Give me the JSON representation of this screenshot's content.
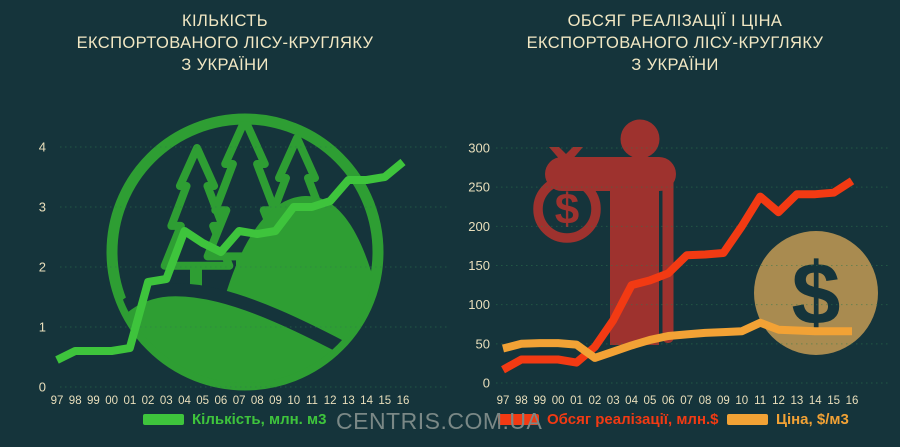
{
  "watermark": "CENTRIS.COM.UA",
  "colors": {
    "background": "#15343B",
    "title_text": "#F2E8C4",
    "axis_text": "#E9DFBC",
    "gridline": "#2E7A4E",
    "quantity_line": "#3EC43C",
    "forest_icon": "#2E9E33",
    "sales_line": "#F23A13",
    "price_line": "#F2A235",
    "person_icon": "#9E322E",
    "coin_icon": "#A98B50",
    "watermark_text": "#7A8886"
  },
  "icons": {
    "forest_emblem": "forest-circle-icon",
    "money_bag_man": "man-with-money-bag-icon",
    "dollar_coin": "dollar-coin-icon",
    "dollar_glyph": "$"
  },
  "chart_data": [
    {
      "type": "line",
      "title": "КІЛЬКІСТЬ ЕКСПОРТОВАНОГО ЛІСУ-КРУГЛЯКУ З УКРАЇНИ",
      "title_lines": [
        "КІЛЬКІСТЬ",
        "ЕКСПОРТОВАНОГО ЛІСУ-КРУГЛЯКУ",
        "З УКРАЇНИ"
      ],
      "categories": [
        "97",
        "98",
        "99",
        "00",
        "01",
        "02",
        "03",
        "04",
        "05",
        "06",
        "07",
        "08",
        "09",
        "10",
        "11",
        "12",
        "13",
        "14",
        "15",
        "16"
      ],
      "series": [
        {
          "name": "Кількість, млн. м3",
          "color": "#3EC43C",
          "values": [
            0.45,
            0.6,
            0.6,
            0.6,
            0.65,
            1.75,
            1.8,
            2.6,
            2.4,
            2.25,
            2.6,
            2.55,
            2.6,
            3.0,
            3.0,
            3.1,
            3.45,
            3.45,
            3.5,
            3.75
          ]
        }
      ],
      "ylim": [
        0,
        4
      ],
      "yticks": [
        0,
        1,
        2,
        3,
        4
      ],
      "grid": true,
      "legend_position": "bottom"
    },
    {
      "type": "line",
      "title": "ОБСЯГ РЕАЛІЗАЦІЇ І ЦІНА ЕКСПОРТОВАНОГО ЛІСУ-КРУГЛЯКУ З УКРАЇНИ",
      "title_lines": [
        "ОБСЯГ РЕАЛІЗАЦІЇ І ЦІНА",
        "ЕКСПОРТОВАНОГО ЛІСУ-КРУГЛЯКУ",
        "З УКРАЇНИ"
      ],
      "categories": [
        "97",
        "98",
        "99",
        "00",
        "01",
        "02",
        "03",
        "04",
        "05",
        "06",
        "07",
        "08",
        "09",
        "10",
        "11",
        "12",
        "13",
        "14",
        "15",
        "16"
      ],
      "series": [
        {
          "name": "Обсяг реалізації, млн.$",
          "color": "#F23A13",
          "values": [
            17,
            30,
            30,
            30,
            26,
            46,
            80,
            125,
            131,
            140,
            163,
            164,
            166,
            200,
            238,
            218,
            241,
            241,
            243,
            258
          ]
        },
        {
          "name": "Ціна, $/м3",
          "color": "#F2A235",
          "values": [
            44,
            50,
            51,
            51,
            49,
            32,
            40,
            48,
            55,
            60,
            62,
            64,
            65,
            66,
            77,
            68,
            67,
            66,
            66,
            66
          ]
        }
      ],
      "ylim": [
        0,
        300
      ],
      "yticks": [
        0,
        50,
        100,
        150,
        200,
        250,
        300
      ],
      "grid": true,
      "legend_position": "bottom"
    }
  ]
}
